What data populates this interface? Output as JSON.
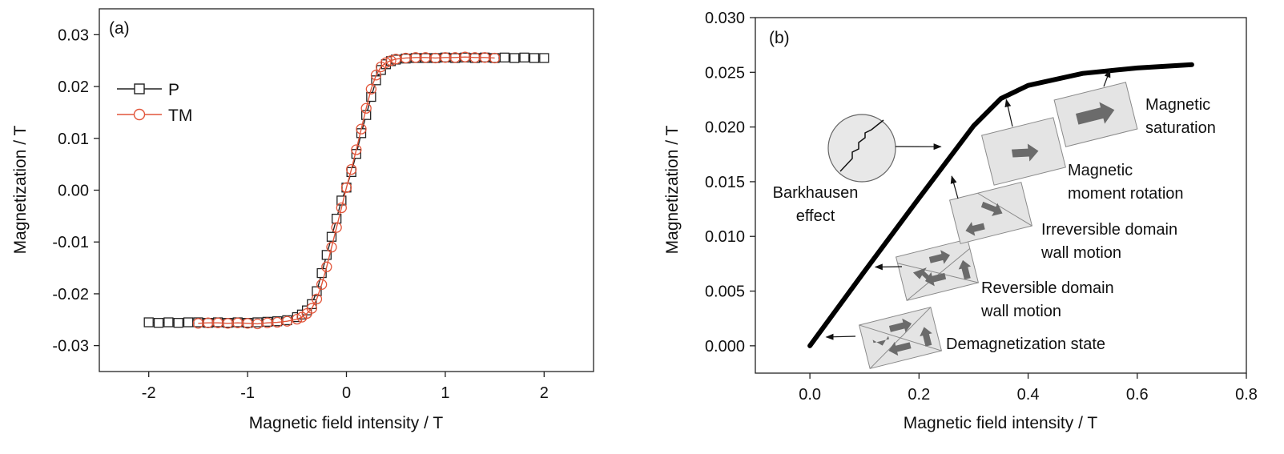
{
  "chart_data": [
    {
      "type": "scatter",
      "panel_label": "(a)",
      "xlabel": "Magnetic field intensity / T",
      "ylabel": "Magnetization / T",
      "xlim": [
        -2.5,
        2.5
      ],
      "ylim": [
        -0.035,
        0.035
      ],
      "xticks": [
        -2,
        -1,
        0,
        1,
        2
      ],
      "xtick_labels": [
        "-2",
        "-1",
        "0",
        "1",
        "2"
      ],
      "yticks": [
        -0.03,
        -0.02,
        -0.01,
        0.0,
        0.01,
        0.02,
        0.03
      ],
      "ytick_labels": [
        "-0.03",
        "-0.02",
        "-0.01",
        "0.00",
        "0.01",
        "0.02",
        "0.03"
      ],
      "legend_position": "upper-left",
      "grid": false,
      "series": [
        {
          "name": "P",
          "marker": "square",
          "color": "#222222",
          "x": [
            -2.0,
            -1.9,
            -1.8,
            -1.7,
            -1.6,
            -1.5,
            -1.4,
            -1.3,
            -1.2,
            -1.1,
            -1.0,
            -0.9,
            -0.8,
            -0.7,
            -0.6,
            -0.5,
            -0.45,
            -0.4,
            -0.35,
            -0.3,
            -0.25,
            -0.2,
            -0.15,
            -0.1,
            -0.05,
            0.0,
            0.05,
            0.1,
            0.15,
            0.2,
            0.25,
            0.3,
            0.35,
            0.4,
            0.45,
            0.5,
            0.6,
            0.7,
            0.8,
            0.9,
            1.0,
            1.1,
            1.2,
            1.3,
            1.4,
            1.5,
            1.6,
            1.7,
            1.8,
            1.9,
            2.0
          ],
          "y": [
            -0.0255,
            -0.0256,
            -0.0255,
            -0.0256,
            -0.0255,
            -0.0255,
            -0.0256,
            -0.0255,
            -0.0256,
            -0.0255,
            -0.0256,
            -0.0255,
            -0.0254,
            -0.0253,
            -0.0251,
            -0.0245,
            -0.024,
            -0.0232,
            -0.022,
            -0.0195,
            -0.016,
            -0.0125,
            -0.009,
            -0.0055,
            -0.002,
            0.0005,
            0.0035,
            0.007,
            0.011,
            0.0145,
            0.018,
            0.0212,
            0.0232,
            0.0243,
            0.0249,
            0.0252,
            0.0254,
            0.0255,
            0.0255,
            0.0255,
            0.0256,
            0.0255,
            0.0256,
            0.0255,
            0.0256,
            0.0255,
            0.0256,
            0.0255,
            0.0256,
            0.0255,
            0.0255
          ]
        },
        {
          "name": "TM",
          "marker": "circle",
          "color": "#e2553a",
          "x": [
            -1.5,
            -1.4,
            -1.3,
            -1.2,
            -1.1,
            -1.0,
            -0.9,
            -0.8,
            -0.7,
            -0.6,
            -0.5,
            -0.45,
            -0.4,
            -0.35,
            -0.3,
            -0.25,
            -0.2,
            -0.15,
            -0.1,
            -0.05,
            0.0,
            0.05,
            0.1,
            0.15,
            0.2,
            0.25,
            0.3,
            0.35,
            0.4,
            0.45,
            0.5,
            0.6,
            0.7,
            0.8,
            0.9,
            1.0,
            1.1,
            1.2,
            1.3,
            1.4,
            1.5
          ],
          "y": [
            -0.0257,
            -0.0256,
            -0.0256,
            -0.0257,
            -0.0256,
            -0.0257,
            -0.0258,
            -0.0256,
            -0.0255,
            -0.0253,
            -0.0249,
            -0.0245,
            -0.0238,
            -0.0228,
            -0.021,
            -0.0182,
            -0.0148,
            -0.011,
            -0.0072,
            -0.0034,
            0.0005,
            0.004,
            0.0078,
            0.0118,
            0.0158,
            0.0195,
            0.0222,
            0.0238,
            0.0246,
            0.025,
            0.0253,
            0.0255,
            0.0256,
            0.0256,
            0.0255,
            0.0256,
            0.0256,
            0.0257,
            0.0256,
            0.0256,
            0.0255
          ]
        }
      ]
    },
    {
      "type": "line",
      "panel_label": "(b)",
      "xlabel": "Magnetic field intensity / T",
      "ylabel": "Magnetization / T",
      "xlim": [
        -0.1,
        0.8
      ],
      "ylim": [
        -0.0025,
        0.03
      ],
      "xticks": [
        0.0,
        0.2,
        0.4,
        0.6,
        0.8
      ],
      "xtick_labels": [
        "0.0",
        "0.2",
        "0.4",
        "0.6",
        "0.8"
      ],
      "yticks": [
        0.0,
        0.005,
        0.01,
        0.015,
        0.02,
        0.025,
        0.03
      ],
      "ytick_labels": [
        "0.000",
        "0.005",
        "0.010",
        "0.015",
        "0.020",
        "0.025",
        "0.030"
      ],
      "grid": false,
      "series": [
        {
          "color": "#000000",
          "x": [
            0.0,
            0.1,
            0.2,
            0.3,
            0.35,
            0.4,
            0.5,
            0.6,
            0.7
          ],
          "y": [
            0.0,
            0.0068,
            0.0135,
            0.0201,
            0.0226,
            0.0238,
            0.0249,
            0.0254,
            0.0257
          ]
        }
      ],
      "annotations": [
        {
          "lines": [
            "Demagnetization state"
          ],
          "target": [
            0.03,
            0.0008
          ]
        },
        {
          "lines": [
            "Reversible domain",
            "wall motion"
          ],
          "target": [
            0.12,
            0.0072
          ]
        },
        {
          "lines": [
            "Irreversible domain",
            "wall motion"
          ],
          "target": [
            0.26,
            0.0155
          ]
        },
        {
          "lines": [
            "Magnetic",
            "moment rotation"
          ],
          "target": [
            0.36,
            0.0225
          ]
        },
        {
          "lines": [
            "Magnetic",
            "saturation"
          ],
          "target": [
            0.55,
            0.0252
          ]
        },
        {
          "lines": [
            "Barkhausen",
            "effect"
          ],
          "target": [
            0.24,
            0.0182
          ]
        }
      ]
    }
  ]
}
